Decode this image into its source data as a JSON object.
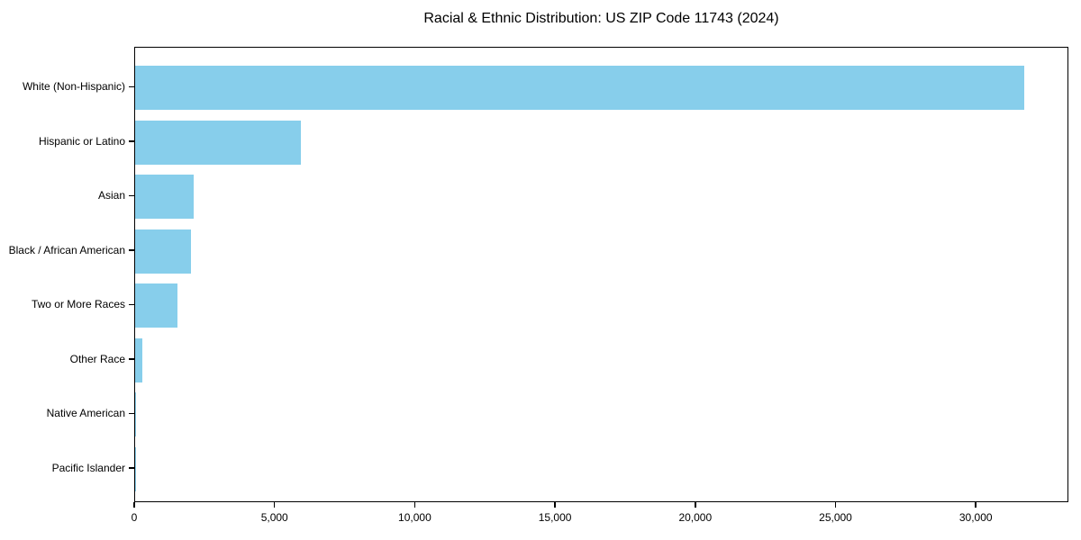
{
  "chart_data": {
    "type": "bar",
    "orientation": "horizontal",
    "title": "Racial & Ethnic Distribution: US ZIP Code 11743 (2024)",
    "xlabel": "",
    "ylabel": "",
    "categories": [
      "White (Non-Hispanic)",
      "Hispanic or Latino",
      "Asian",
      "Black / African American",
      "Two or More Races",
      "Other Race",
      "Native American",
      "Pacific Islander"
    ],
    "values": [
      31700,
      5900,
      2100,
      2000,
      1500,
      250,
      30,
      10
    ],
    "xlim": [
      0,
      33300
    ],
    "xticks": [
      0,
      5000,
      10000,
      15000,
      20000,
      25000,
      30000
    ],
    "xtick_labels": [
      "0",
      "5,000",
      "10,000",
      "15,000",
      "20,000",
      "25,000",
      "30,000"
    ],
    "bar_color": "#87CEEB",
    "axis_color": "#000000",
    "background_color": "#ffffff",
    "grid": false,
    "legend_position": "none"
  }
}
